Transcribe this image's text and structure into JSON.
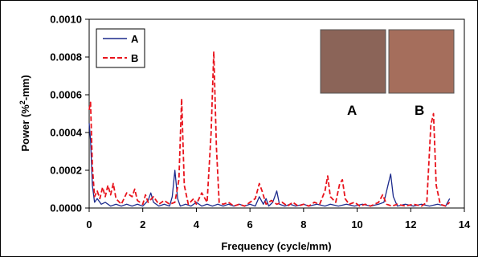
{
  "chart_data": {
    "type": "line",
    "title": "",
    "xlabel": "Frequency (cycle/mm)",
    "ylabel_parts": [
      "Power (%",
      "2",
      "-mm)"
    ],
    "xlim": [
      0,
      14
    ],
    "ylim": [
      0,
      0.001
    ],
    "x_ticks": [
      "0",
      "2",
      "4",
      "6",
      "8",
      "10",
      "12",
      "14"
    ],
    "y_ticks": [
      "0.0000",
      "0.0002",
      "0.0004",
      "0.0006",
      "0.0008",
      "0.0010"
    ],
    "grid": false,
    "legend_placement": "top-left",
    "series": [
      {
        "name": "A",
        "color": "#1c2a8c",
        "dash": "solid",
        "points": [
          [
            0.0,
            0.00045
          ],
          [
            0.05,
            0.00036
          ],
          [
            0.12,
            0.00012
          ],
          [
            0.2,
            3e-05
          ],
          [
            0.3,
            5e-05
          ],
          [
            0.45,
            2e-05
          ],
          [
            0.6,
            3e-05
          ],
          [
            0.8,
            1e-05
          ],
          [
            1.0,
            2e-05
          ],
          [
            1.2,
            1e-05
          ],
          [
            1.4,
            2e-05
          ],
          [
            1.6,
            1e-05
          ],
          [
            1.8,
            2e-05
          ],
          [
            2.0,
            1e-05
          ],
          [
            2.2,
            4e-05
          ],
          [
            2.3,
            8e-05
          ],
          [
            2.4,
            3e-05
          ],
          [
            2.6,
            1e-05
          ],
          [
            2.8,
            2e-05
          ],
          [
            3.0,
            1e-05
          ],
          [
            3.1,
            6e-05
          ],
          [
            3.2,
            0.0002
          ],
          [
            3.3,
            5e-05
          ],
          [
            3.4,
            1e-05
          ],
          [
            3.6,
            2e-05
          ],
          [
            3.8,
            1e-05
          ],
          [
            4.0,
            3e-05
          ],
          [
            4.2,
            1e-05
          ],
          [
            4.4,
            2e-05
          ],
          [
            4.6,
            1e-05
          ],
          [
            4.8,
            2e-05
          ],
          [
            5.0,
            1e-05
          ],
          [
            5.2,
            2e-05
          ],
          [
            5.4,
            1e-05
          ],
          [
            5.6,
            2e-05
          ],
          [
            5.8,
            1e-05
          ],
          [
            6.0,
            2e-05
          ],
          [
            6.2,
            1e-05
          ],
          [
            6.35,
            6e-05
          ],
          [
            6.5,
            2e-05
          ],
          [
            6.6,
            5e-05
          ],
          [
            6.7,
            1e-05
          ],
          [
            6.85,
            3e-05
          ],
          [
            7.0,
            9e-05
          ],
          [
            7.1,
            2e-05
          ],
          [
            7.3,
            1e-05
          ],
          [
            7.5,
            2e-05
          ],
          [
            7.7,
            1e-05
          ],
          [
            8.0,
            2e-05
          ],
          [
            8.2,
            1e-05
          ],
          [
            8.5,
            2e-05
          ],
          [
            8.8,
            1e-05
          ],
          [
            9.0,
            2e-05
          ],
          [
            9.3,
            1e-05
          ],
          [
            9.6,
            2e-05
          ],
          [
            9.9,
            1e-05
          ],
          [
            10.2,
            2e-05
          ],
          [
            10.5,
            1e-05
          ],
          [
            10.8,
            2e-05
          ],
          [
            11.0,
            3e-05
          ],
          [
            11.15,
            0.00012
          ],
          [
            11.25,
            0.00018
          ],
          [
            11.35,
            6e-05
          ],
          [
            11.5,
            1e-05
          ],
          [
            11.8,
            2e-05
          ],
          [
            12.1,
            1e-05
          ],
          [
            12.4,
            2e-05
          ],
          [
            12.7,
            1e-05
          ],
          [
            13.0,
            2e-05
          ],
          [
            13.3,
            1e-05
          ],
          [
            13.45,
            5e-05
          ]
        ]
      },
      {
        "name": "B",
        "color": "#e8131c",
        "dash": "dashed",
        "points": [
          [
            0.0,
            0.00052
          ],
          [
            0.05,
            0.00056
          ],
          [
            0.12,
            0.00022
          ],
          [
            0.2,
            6e-05
          ],
          [
            0.3,
            9e-05
          ],
          [
            0.4,
            5e-05
          ],
          [
            0.5,
            0.00011
          ],
          [
            0.6,
            6e-05
          ],
          [
            0.7,
            0.00012
          ],
          [
            0.8,
            7e-05
          ],
          [
            0.9,
            0.00013
          ],
          [
            1.0,
            5e-05
          ],
          [
            1.2,
            2e-05
          ],
          [
            1.4,
            8e-05
          ],
          [
            1.6,
            6e-05
          ],
          [
            1.7,
            0.0001
          ],
          [
            1.8,
            4e-05
          ],
          [
            2.0,
            2e-05
          ],
          [
            2.1,
            7e-05
          ],
          [
            2.2,
            3e-05
          ],
          [
            2.4,
            6e-05
          ],
          [
            2.6,
            2e-05
          ],
          [
            2.8,
            4e-05
          ],
          [
            3.0,
            2e-05
          ],
          [
            3.2,
            3e-05
          ],
          [
            3.35,
            0.00015
          ],
          [
            3.45,
            0.00058
          ],
          [
            3.55,
            0.00012
          ],
          [
            3.7,
            2e-05
          ],
          [
            3.9,
            5e-05
          ],
          [
            4.0,
            2e-05
          ],
          [
            4.2,
            8e-05
          ],
          [
            4.4,
            3e-05
          ],
          [
            4.55,
            0.0004
          ],
          [
            4.65,
            0.00083
          ],
          [
            4.75,
            0.00032
          ],
          [
            4.85,
            3e-05
          ],
          [
            5.0,
            2e-05
          ],
          [
            5.2,
            3e-05
          ],
          [
            5.4,
            1e-05
          ],
          [
            5.6,
            2e-05
          ],
          [
            5.8,
            1e-05
          ],
          [
            6.0,
            3e-05
          ],
          [
            6.2,
            5e-05
          ],
          [
            6.35,
            0.00013
          ],
          [
            6.45,
            9e-05
          ],
          [
            6.6,
            2e-05
          ],
          [
            6.8,
            4e-05
          ],
          [
            7.0,
            2e-05
          ],
          [
            7.2,
            3e-05
          ],
          [
            7.4,
            1e-05
          ],
          [
            7.6,
            3e-05
          ],
          [
            7.8,
            1e-05
          ],
          [
            8.0,
            2e-05
          ],
          [
            8.2,
            1e-05
          ],
          [
            8.4,
            3e-05
          ],
          [
            8.6,
            2e-05
          ],
          [
            8.8,
            9e-05
          ],
          [
            8.9,
            0.00017
          ],
          [
            9.0,
            6e-05
          ],
          [
            9.2,
            3e-05
          ],
          [
            9.35,
            0.00013
          ],
          [
            9.45,
            0.00015
          ],
          [
            9.55,
            5e-05
          ],
          [
            9.7,
            2e-05
          ],
          [
            9.9,
            3e-05
          ],
          [
            10.1,
            1e-05
          ],
          [
            10.3,
            2e-05
          ],
          [
            10.5,
            1e-05
          ],
          [
            10.8,
            3e-05
          ],
          [
            10.95,
            7e-05
          ],
          [
            11.1,
            2e-05
          ],
          [
            11.3,
            1e-05
          ],
          [
            11.5,
            2e-05
          ],
          [
            11.8,
            1e-05
          ],
          [
            12.1,
            2e-05
          ],
          [
            12.4,
            1e-05
          ],
          [
            12.6,
            3e-05
          ],
          [
            12.75,
            0.00044
          ],
          [
            12.85,
            0.0005
          ],
          [
            12.95,
            0.00012
          ],
          [
            13.1,
            2e-05
          ],
          [
            13.3,
            1e-05
          ],
          [
            13.45,
            3e-05
          ]
        ]
      }
    ]
  },
  "inset": {
    "swatch_a": {
      "label": "A",
      "color": "#8b6458"
    },
    "swatch_b": {
      "label": "B",
      "color": "#a56e5c"
    }
  },
  "colors": {
    "frame": "#000000",
    "background": "#ffffff"
  }
}
